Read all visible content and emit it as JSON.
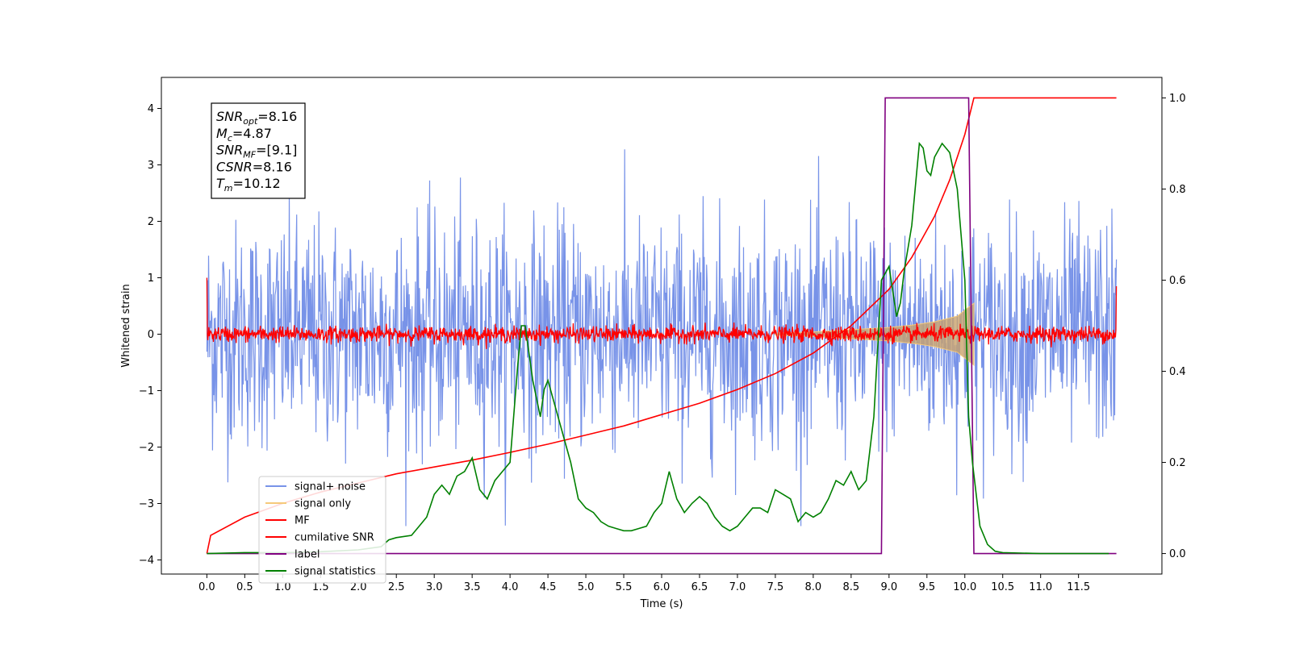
{
  "chart_data": {
    "type": "line",
    "xlabel": "Time (s)",
    "ylabel": "Whitened strain",
    "xlim": [
      -0.6,
      12.6
    ],
    "ylim": [
      -4.25,
      4.55
    ],
    "y2lim": [
      -0.045,
      1.045
    ],
    "x_ticks": [
      "0.0",
      "0.5",
      "1.0",
      "1.5",
      "2.0",
      "2.5",
      "3.0",
      "3.5",
      "4.0",
      "4.5",
      "5.0",
      "5.5",
      "6.0",
      "6.5",
      "7.0",
      "7.5",
      "8.0",
      "8.5",
      "9.0",
      "9.5",
      "10.0",
      "10.5",
      "11.0",
      "11.5"
    ],
    "y_ticks": [
      "−4",
      "−3",
      "−2",
      "−1",
      "0",
      "1",
      "2",
      "3",
      "4"
    ],
    "y2_ticks": [
      "0.0",
      "0.2",
      "0.4",
      "0.6",
      "0.8",
      "1.0"
    ],
    "info_box": [
      {
        "main": "SNR",
        "sub": "opt",
        "value": "=8.16"
      },
      {
        "main": "M",
        "sub": "c",
        "value": "=4.87"
      },
      {
        "main": "SNR",
        "sub": "MF",
        "value": "=[9.1]"
      },
      {
        "main": "CSNR",
        "sub": "",
        "value": "=8.16"
      },
      {
        "main": "T",
        "sub": "m",
        "value": "=10.12"
      }
    ],
    "legend": {
      "placement": "lower-left",
      "entries": [
        {
          "label": "signal+ noise",
          "color": "#7893e8"
        },
        {
          "label": "signal only",
          "color": "#f5c97a"
        },
        {
          "label": "MF",
          "color": "#ff0000"
        },
        {
          "label": "cumilative SNR",
          "color": "#ff0000"
        },
        {
          "label": "label",
          "color": "#800080"
        },
        {
          "label": "signal statistics",
          "color": "#008000"
        }
      ]
    },
    "series": [
      {
        "name": "signal+ noise",
        "axis": "left",
        "color": "#7893e8",
        "x_range": [
          0.0,
          12.0
        ],
        "noise_sigma": 1.0,
        "peak_range": [
          -3.4,
          4.2
        ]
      },
      {
        "name": "signal only",
        "axis": "left",
        "color": "#f5c97a",
        "envelope": {
          "x": [
            7.5,
            8.0,
            8.5,
            9.0,
            9.3,
            9.6,
            9.9,
            10.12
          ],
          "amplitude": [
            0.02,
            0.04,
            0.08,
            0.12,
            0.16,
            0.22,
            0.32,
            0.55
          ]
        }
      },
      {
        "name": "MF",
        "axis": "left",
        "color": "#ff0000",
        "x_range": [
          0.0,
          12.0
        ],
        "noise_sigma": 0.07,
        "edge_values": [
          1.0,
          0.85
        ]
      },
      {
        "name": "cumilative SNR",
        "axis": "right",
        "color": "#ff0000",
        "x": [
          0.0,
          0.05,
          0.5,
          1.0,
          1.5,
          2.0,
          2.5,
          3.0,
          3.5,
          4.0,
          4.5,
          5.0,
          5.5,
          6.0,
          6.5,
          7.0,
          7.5,
          8.0,
          8.5,
          9.0,
          9.3,
          9.6,
          9.8,
          10.0,
          10.12,
          10.3,
          11.0,
          12.0
        ],
        "values": [
          0.0,
          0.04,
          0.08,
          0.11,
          0.135,
          0.155,
          0.175,
          0.19,
          0.205,
          0.222,
          0.24,
          0.26,
          0.28,
          0.305,
          0.33,
          0.36,
          0.395,
          0.44,
          0.5,
          0.58,
          0.65,
          0.74,
          0.82,
          0.92,
          1.0,
          1.0,
          1.0,
          1.0
        ]
      },
      {
        "name": "label",
        "axis": "right",
        "color": "#800080",
        "x": [
          0.0,
          8.9,
          8.95,
          10.05,
          10.12,
          11.0,
          11.5,
          12.0
        ],
        "values": [
          0.0,
          0.0,
          1.0,
          1.0,
          0.0,
          0.0,
          0.0,
          0.0
        ]
      },
      {
        "name": "signal statistics",
        "axis": "right",
        "color": "#008000",
        "x": [
          0.0,
          0.5,
          1.0,
          1.5,
          2.0,
          2.3,
          2.4,
          2.5,
          2.7,
          2.8,
          2.9,
          3.0,
          3.1,
          3.2,
          3.3,
          3.4,
          3.5,
          3.6,
          3.7,
          3.8,
          3.9,
          4.0,
          4.1,
          4.15,
          4.2,
          4.3,
          4.4,
          4.45,
          4.5,
          4.6,
          4.7,
          4.8,
          4.9,
          5.0,
          5.1,
          5.2,
          5.3,
          5.4,
          5.5,
          5.6,
          5.7,
          5.8,
          5.9,
          6.0,
          6.1,
          6.2,
          6.3,
          6.4,
          6.5,
          6.6,
          6.7,
          6.8,
          6.9,
          7.0,
          7.1,
          7.2,
          7.3,
          7.4,
          7.5,
          7.6,
          7.7,
          7.8,
          7.9,
          8.0,
          8.1,
          8.2,
          8.3,
          8.4,
          8.5,
          8.6,
          8.7,
          8.8,
          8.9,
          9.0,
          9.1,
          9.15,
          9.2,
          9.3,
          9.4,
          9.45,
          9.5,
          9.55,
          9.6,
          9.7,
          9.8,
          9.9,
          10.0,
          10.05,
          10.1,
          10.2,
          10.3,
          10.4,
          10.5,
          11.0,
          11.5,
          11.9
        ],
        "values": [
          0.0,
          0.002,
          0.002,
          0.004,
          0.008,
          0.015,
          0.03,
          0.035,
          0.04,
          0.06,
          0.08,
          0.13,
          0.15,
          0.13,
          0.17,
          0.18,
          0.21,
          0.14,
          0.12,
          0.16,
          0.18,
          0.2,
          0.41,
          0.5,
          0.5,
          0.38,
          0.3,
          0.36,
          0.38,
          0.32,
          0.26,
          0.2,
          0.12,
          0.1,
          0.09,
          0.07,
          0.06,
          0.055,
          0.05,
          0.05,
          0.055,
          0.06,
          0.09,
          0.11,
          0.18,
          0.12,
          0.09,
          0.11,
          0.125,
          0.11,
          0.08,
          0.06,
          0.05,
          0.06,
          0.08,
          0.1,
          0.1,
          0.09,
          0.14,
          0.13,
          0.12,
          0.07,
          0.09,
          0.08,
          0.09,
          0.12,
          0.16,
          0.15,
          0.18,
          0.14,
          0.16,
          0.3,
          0.6,
          0.63,
          0.52,
          0.55,
          0.62,
          0.72,
          0.9,
          0.89,
          0.84,
          0.83,
          0.87,
          0.9,
          0.88,
          0.8,
          0.6,
          0.3,
          0.2,
          0.06,
          0.02,
          0.005,
          0.002,
          0.0,
          0.0,
          0.0
        ]
      }
    ]
  }
}
